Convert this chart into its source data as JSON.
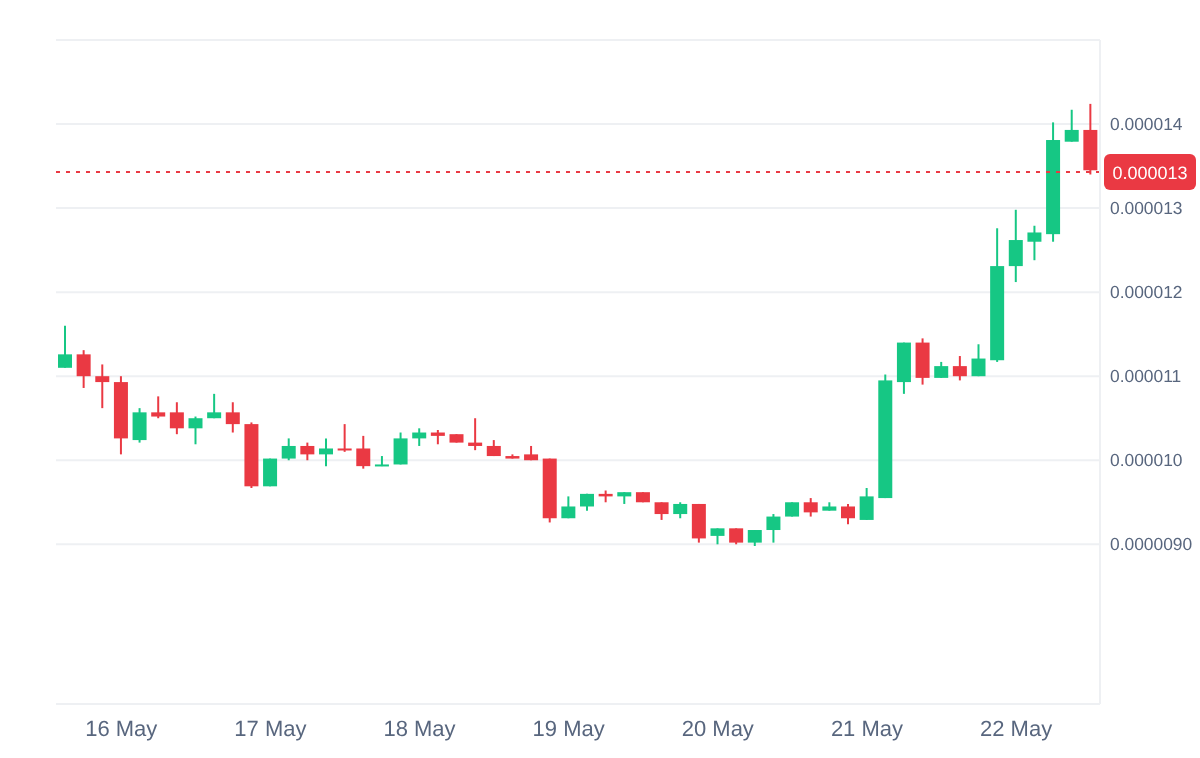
{
  "chart_data": {
    "type": "candlestick",
    "categories": [
      null,
      null,
      null,
      "16 May",
      null,
      null,
      null,
      null,
      null,
      null,
      null,
      "17 May",
      null,
      null,
      null,
      null,
      null,
      null,
      null,
      "18 May",
      null,
      null,
      null,
      null,
      null,
      null,
      null,
      "19 May",
      null,
      null,
      null,
      null,
      null,
      null,
      null,
      "20 May",
      null,
      null,
      null,
      null,
      null,
      null,
      null,
      "21 May",
      null,
      null,
      null,
      null,
      null,
      null,
      null,
      "22 May",
      null,
      null,
      null,
      null
    ],
    "ohlc": [
      [
        1.11e-05,
        1.16e-05,
        1.11e-05,
        1.126e-05
      ],
      [
        1.126e-05,
        1.131e-05,
        1.086e-05,
        1.1e-05
      ],
      [
        1.1e-05,
        1.114e-05,
        1.062e-05,
        1.093e-05
      ],
      [
        1.093e-05,
        1.1e-05,
        1.007e-05,
        1.026e-05
      ],
      [
        1.024e-05,
        1.062e-05,
        1.021e-05,
        1.057e-05
      ],
      [
        1.057e-05,
        1.076e-05,
        1.05e-05,
        1.052e-05
      ],
      [
        1.057e-05,
        1.069e-05,
        1.031e-05,
        1.038e-05
      ],
      [
        1.038e-05,
        1.052e-05,
        1.019e-05,
        1.05e-05
      ],
      [
        1.05e-05,
        1.079e-05,
        1.05e-05,
        1.057e-05
      ],
      [
        1.057e-05,
        1.069e-05,
        1.033e-05,
        1.043e-05
      ],
      [
        1.043e-05,
        1.045e-05,
        9.67e-06,
        9.69e-06
      ],
      [
        9.69e-06,
        1.002e-05,
        9.69e-06,
        1.002e-05
      ],
      [
        1.002e-05,
        1.026e-05,
        1e-05,
        1.017e-05
      ],
      [
        1.017e-05,
        1.021e-05,
        1e-05,
        1.007e-05
      ],
      [
        1.007e-05,
        1.026e-05,
        9.93e-06,
        1.014e-05
      ],
      [
        1.014e-05,
        1.043e-05,
        1.01e-05,
        1.012e-05
      ],
      [
        1.014e-05,
        1.029e-05,
        9.9e-06,
        9.93e-06
      ],
      [
        9.93e-06,
        1.005e-05,
        9.93e-06,
        9.95e-06
      ],
      [
        9.95e-06,
        1.033e-05,
        9.95e-06,
        1.026e-05
      ],
      [
        1.026e-05,
        1.038e-05,
        1.017e-05,
        1.033e-05
      ],
      [
        1.033e-05,
        1.036e-05,
        1.019e-05,
        1.029e-05
      ],
      [
        1.031e-05,
        1.031e-05,
        1.021e-05,
        1.021e-05
      ],
      [
        1.021e-05,
        1.05e-05,
        1.012e-05,
        1.017e-05
      ],
      [
        1.017e-05,
        1.024e-05,
        1.005e-05,
        1.005e-05
      ],
      [
        1.005e-05,
        1.007e-05,
        1.002e-05,
        1.002e-05
      ],
      [
        1.007e-05,
        1.017e-05,
        1e-05,
        1e-05
      ],
      [
        1.002e-05,
        1.002e-05,
        9.26e-06,
        9.31e-06
      ],
      [
        9.31e-06,
        9.57e-06,
        9.31e-06,
        9.45e-06
      ],
      [
        9.45e-06,
        9.6e-06,
        9.4e-06,
        9.6e-06
      ],
      [
        9.6e-06,
        9.64e-06,
        9.5e-06,
        9.57e-06
      ],
      [
        9.57e-06,
        9.62e-06,
        9.48e-06,
        9.62e-06
      ],
      [
        9.62e-06,
        9.62e-06,
        9.5e-06,
        9.5e-06
      ],
      [
        9.5e-06,
        9.5e-06,
        9.29e-06,
        9.36e-06
      ],
      [
        9.36e-06,
        9.5e-06,
        9.31e-06,
        9.48e-06
      ],
      [
        9.48e-06,
        9.48e-06,
        9.02e-06,
        9.07e-06
      ],
      [
        9.1e-06,
        9.19e-06,
        9e-06,
        9.19e-06
      ],
      [
        9.19e-06,
        9.19e-06,
        9e-06,
        9.02e-06
      ],
      [
        9.02e-06,
        9.17e-06,
        8.98e-06,
        9.17e-06
      ],
      [
        9.17e-06,
        9.36e-06,
        9.02e-06,
        9.33e-06
      ],
      [
        9.33e-06,
        9.5e-06,
        9.33e-06,
        9.5e-06
      ],
      [
        9.5e-06,
        9.55e-06,
        9.33e-06,
        9.38e-06
      ],
      [
        9.4e-06,
        9.5e-06,
        9.4e-06,
        9.45e-06
      ],
      [
        9.45e-06,
        9.48e-06,
        9.24e-06,
        9.31e-06
      ],
      [
        9.29e-06,
        9.67e-06,
        9.29e-06,
        9.57e-06
      ],
      [
        9.55e-06,
        1.102e-05,
        9.55e-06,
        1.095e-05
      ],
      [
        1.093e-05,
        1.14e-05,
        1.079e-05,
        1.14e-05
      ],
      [
        1.14e-05,
        1.145e-05,
        1.09e-05,
        1.098e-05
      ],
      [
        1.098e-05,
        1.117e-05,
        1.098e-05,
        1.112e-05
      ],
      [
        1.112e-05,
        1.124e-05,
        1.095e-05,
        1.1e-05
      ],
      [
        1.1e-05,
        1.138e-05,
        1.1e-05,
        1.121e-05
      ],
      [
        1.119e-05,
        1.276e-05,
        1.117e-05,
        1.231e-05
      ],
      [
        1.231e-05,
        1.298e-05,
        1.212e-05,
        1.262e-05
      ],
      [
        1.26e-05,
        1.279e-05,
        1.238e-05,
        1.271e-05
      ],
      [
        1.269e-05,
        1.402e-05,
        1.26e-05,
        1.381e-05
      ],
      [
        1.379e-05,
        1.417e-05,
        1.379e-05,
        1.393e-05
      ],
      [
        1.393e-05,
        1.424e-05,
        1.34e-05,
        1.345e-05
      ]
    ],
    "colors": [
      "#16c784",
      "#ea3943",
      "#ea3943",
      "#ea3943",
      "#16c784",
      "#ea3943",
      "#ea3943",
      "#16c784",
      "#16c784",
      "#ea3943",
      "#ea3943",
      "#16c784",
      "#16c784",
      "#ea3943",
      "#16c784",
      "#ea3943",
      "#ea3943",
      "#16c784",
      "#16c784",
      "#16c784",
      "#ea3943",
      "#ea3943",
      "#ea3943",
      "#ea3943",
      "#ea3943",
      "#ea3943",
      "#ea3943",
      "#16c784",
      "#16c784",
      "#ea3943",
      "#16c784",
      "#ea3943",
      "#ea3943",
      "#16c784",
      "#ea3943",
      "#16c784",
      "#ea3943",
      "#16c784",
      "#16c784",
      "#16c784",
      "#ea3943",
      "#16c784",
      "#ea3943",
      "#16c784",
      "#16c784",
      "#16c784",
      "#ea3943",
      "#16c784",
      "#ea3943",
      "#16c784",
      "#16c784",
      "#16c784",
      "#16c784",
      "#16c784",
      "#16c784",
      "#ea3943"
    ],
    "ylim": [
      7.1e-06,
      1.5e-05
    ],
    "yticks": [
      {
        "value": 9e-06,
        "label": "0.0000090"
      },
      {
        "value": 1e-05,
        "label": "0.000010"
      },
      {
        "value": 1.1e-05,
        "label": "0.000011"
      },
      {
        "value": 1.2e-05,
        "label": "0.000012"
      },
      {
        "value": 1.3e-05,
        "label": "0.000013"
      },
      {
        "value": 1.4e-05,
        "label": "0.000014"
      }
    ],
    "ref_lines": [
      {
        "axis": "y",
        "value": 1.343e-05,
        "label": "0.000013",
        "color": "#ea3943",
        "line_style": "dotted"
      }
    ],
    "grid": "y"
  }
}
